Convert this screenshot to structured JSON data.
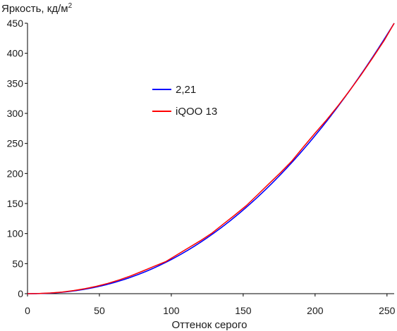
{
  "chart_data": {
    "type": "line",
    "ylabel": "Яркость, кд/м",
    "ylabel_superscript": "2",
    "xlabel": "Оттенок серого",
    "xlim": [
      0,
      255
    ],
    "ylim": [
      0,
      450
    ],
    "x_ticks": [
      0,
      50,
      100,
      150,
      200,
      250
    ],
    "y_ticks": [
      0,
      50,
      100,
      150,
      200,
      250,
      300,
      350,
      400,
      450
    ],
    "grid": false,
    "legend_position": "center-left",
    "series": [
      {
        "name": "2,21",
        "color": "#0000ff",
        "gamma": 2.21,
        "ymax": 450
      },
      {
        "name": "iQOO 13",
        "color": "#ff0000",
        "x": [
          0,
          8,
          16,
          24,
          32,
          40,
          48,
          56,
          64,
          72,
          80,
          88,
          96,
          104,
          112,
          120,
          128,
          136,
          144,
          152,
          160,
          168,
          176,
          184,
          192,
          200,
          208,
          216,
          224,
          232,
          240,
          248,
          255
        ],
        "y": [
          0,
          0.3,
          1.2,
          2.7,
          5.1,
          8.3,
          12.3,
          17.2,
          23.1,
          29.8,
          37.5,
          45.5,
          53.2,
          64.7,
          76.3,
          87.8,
          100.3,
          115.5,
          130.5,
          146.2,
          164.5,
          183.2,
          201.5,
          221.2,
          244.5,
          267.2,
          289.2,
          312.8,
          337.8,
          364.2,
          392.2,
          421.2,
          450
        ]
      }
    ]
  }
}
